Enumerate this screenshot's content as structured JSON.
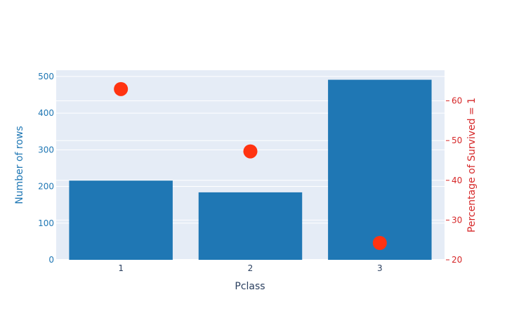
{
  "chart_data": {
    "type": "bar",
    "categories": [
      "1",
      "2",
      "3"
    ],
    "series": [
      {
        "type": "bar",
        "axis": "y",
        "values": [
          216,
          184,
          491
        ],
        "color": "#1f77b4"
      },
      {
        "type": "scatter",
        "axis": "y2",
        "values": [
          62.96,
          47.28,
          24.24
        ],
        "color": "#ff3311"
      }
    ],
    "xlabel": "Pclass",
    "ylabel": "Number of rows",
    "y2label": "Percentage of Survived = 1",
    "ylim": [
      0,
      517
    ],
    "y2lim": [
      20,
      67.7
    ],
    "yticks": [
      0,
      100,
      200,
      300,
      400,
      500
    ],
    "y2ticks": [
      20,
      30,
      40,
      50,
      60
    ],
    "grid": true,
    "colors": {
      "plot_bg": "#e5ecf6",
      "grid": "#ffffff",
      "left_axis": "#1f77b4",
      "right_axis": "#d62728",
      "x_axis": "#2a3f5f"
    }
  }
}
